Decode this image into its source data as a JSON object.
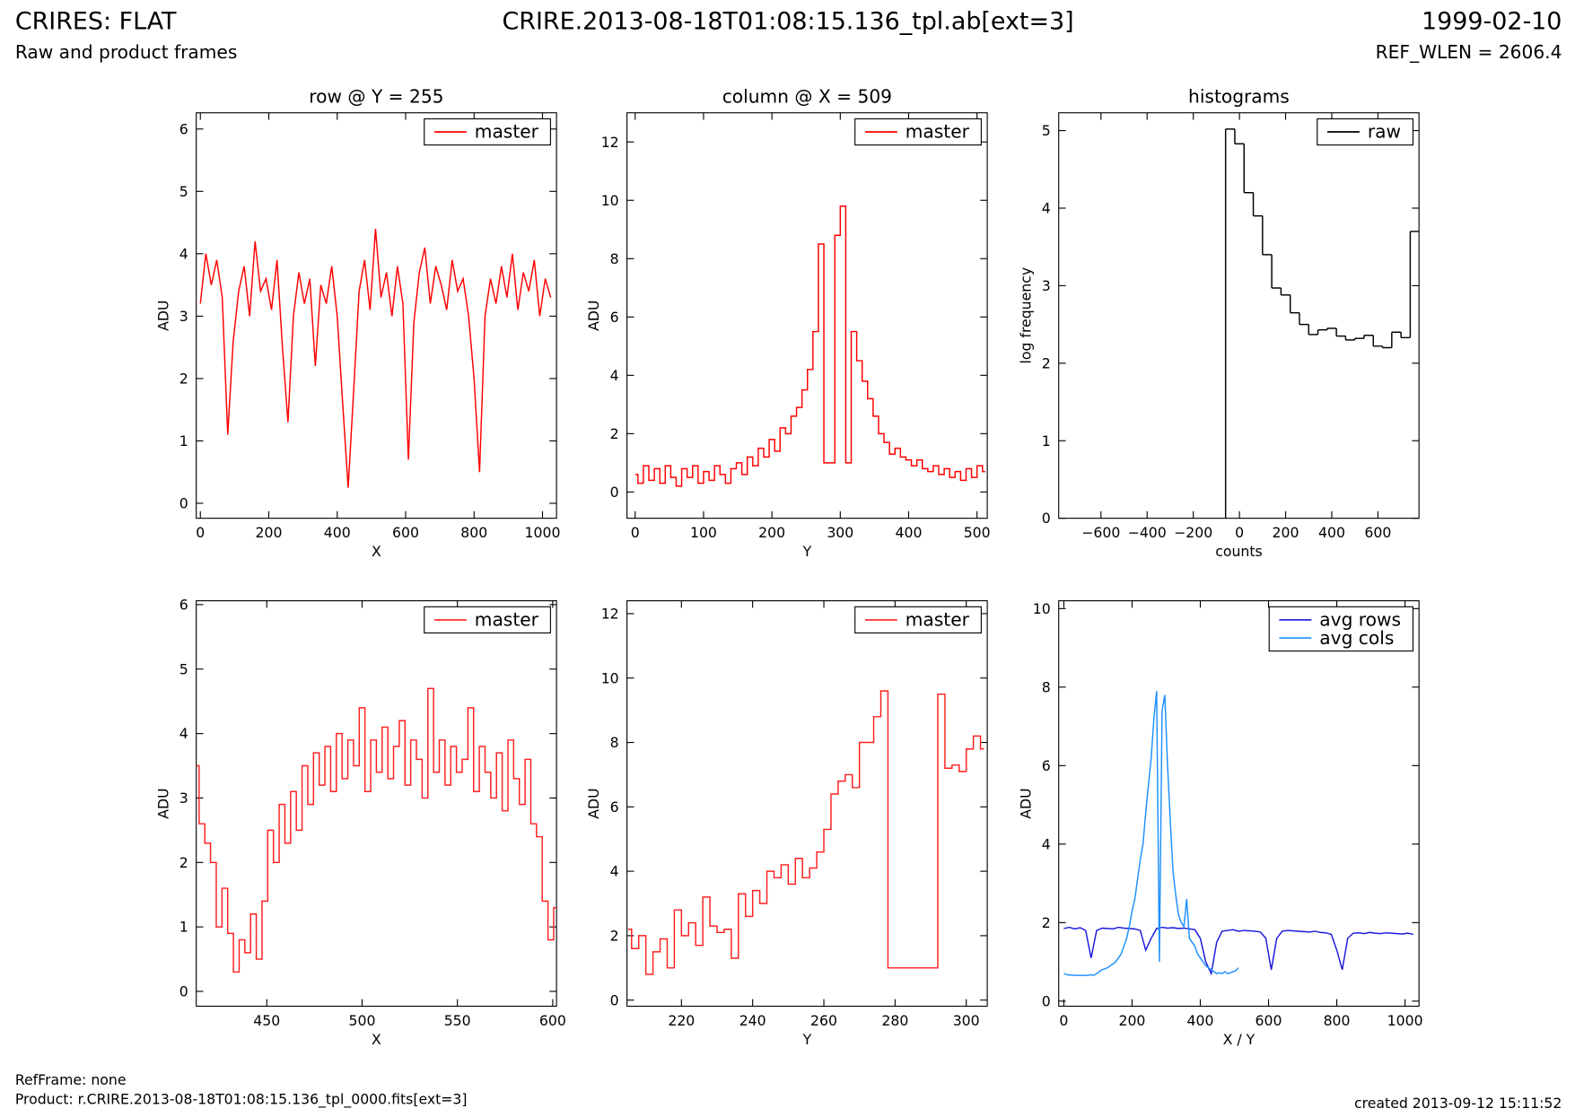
{
  "header": {
    "title": "CRIRES: FLAT",
    "file": "CRIRE.2013-08-18T01:08:15.136_tpl.ab[ext=3]",
    "date": "1999-02-10",
    "subtitle": "Raw and product frames",
    "ref_wlen": "REF_WLEN = 2606.4"
  },
  "footer": {
    "ref_frame": "RefFrame: none",
    "product": "Product: r.CRIRE.2013-08-18T01:08:15.136_tpl_0000.fits[ext=3]",
    "created": "created 2013-09-12 15:11:52"
  },
  "chart_data": [
    {
      "type": "line",
      "title": "row @ Y = 255",
      "x_label": "X",
      "y_label": "ADU",
      "legend": "upper right",
      "step": false,
      "xlim": [
        -12,
        1041
      ],
      "ylim": [
        -0.24,
        6.26
      ],
      "xticks": [
        0,
        200,
        400,
        600,
        800,
        1000
      ],
      "yticks": [
        0,
        1,
        2,
        3,
        4,
        5,
        6
      ],
      "series": [
        {
          "name": "master",
          "color": "#ff0000",
          "x": [
            0,
            16,
            32,
            48,
            64,
            80,
            96,
            112,
            128,
            144,
            160,
            176,
            192,
            208,
            224,
            240,
            256,
            272,
            288,
            304,
            320,
            336,
            352,
            368,
            384,
            400,
            416,
            432,
            448,
            464,
            480,
            496,
            512,
            528,
            544,
            560,
            576,
            592,
            608,
            624,
            640,
            656,
            672,
            688,
            704,
            720,
            736,
            752,
            768,
            784,
            800,
            816,
            832,
            848,
            864,
            880,
            896,
            912,
            928,
            944,
            960,
            976,
            992,
            1008,
            1024
          ],
          "values": [
            3.2,
            4.0,
            3.5,
            3.9,
            3.3,
            1.1,
            2.6,
            3.4,
            3.8,
            3.0,
            4.2,
            3.4,
            3.6,
            3.1,
            3.9,
            2.5,
            1.3,
            3.0,
            3.7,
            3.2,
            3.6,
            2.2,
            3.5,
            3.2,
            3.8,
            3.0,
            1.6,
            0.25,
            1.8,
            3.4,
            3.9,
            3.1,
            4.4,
            3.3,
            3.7,
            3.0,
            3.8,
            3.2,
            0.7,
            2.9,
            3.7,
            4.1,
            3.2,
            3.8,
            3.5,
            3.1,
            3.9,
            3.4,
            3.6,
            3.0,
            2.0,
            0.5,
            3.0,
            3.6,
            3.2,
            3.8,
            3.3,
            4.0,
            3.1,
            3.7,
            3.4,
            3.9,
            3.0,
            3.6,
            3.3
          ]
        }
      ]
    },
    {
      "type": "line",
      "title": "column @ X = 509",
      "x_label": "Y",
      "y_label": "ADU",
      "legend": "upper right",
      "step": true,
      "xlim": [
        -12,
        515
      ],
      "ylim": [
        -0.9,
        13
      ],
      "xticks": [
        0,
        100,
        200,
        300,
        400,
        500
      ],
      "yticks": [
        0,
        2,
        4,
        6,
        8,
        10,
        12
      ],
      "series": [
        {
          "name": "master",
          "color": "#ff0000",
          "x": [
            0,
            8,
            16,
            24,
            32,
            40,
            48,
            56,
            64,
            72,
            80,
            88,
            96,
            104,
            112,
            120,
            128,
            136,
            144,
            152,
            160,
            168,
            176,
            184,
            192,
            200,
            208,
            216,
            224,
            232,
            240,
            248,
            256,
            264,
            272,
            280,
            288,
            296,
            304,
            312,
            320,
            328,
            336,
            344,
            352,
            360,
            368,
            376,
            384,
            392,
            400,
            408,
            416,
            424,
            432,
            440,
            448,
            456,
            464,
            472,
            480,
            488,
            496,
            504,
            512
          ],
          "values": [
            0.6,
            0.3,
            0.9,
            0.4,
            0.8,
            0.3,
            0.9,
            0.5,
            0.2,
            0.8,
            0.5,
            0.9,
            0.3,
            0.7,
            0.4,
            0.9,
            0.6,
            0.3,
            0.8,
            1.0,
            0.6,
            1.2,
            0.9,
            1.5,
            1.2,
            1.8,
            1.4,
            2.2,
            2.0,
            2.6,
            2.9,
            3.5,
            4.2,
            5.5,
            8.5,
            1.0,
            1.0,
            8.8,
            9.8,
            1.0,
            5.5,
            4.5,
            3.8,
            3.2,
            2.6,
            2.0,
            1.7,
            1.3,
            1.5,
            1.2,
            1.1,
            0.9,
            1.1,
            0.8,
            0.7,
            0.9,
            0.6,
            0.8,
            0.5,
            0.7,
            0.4,
            0.8,
            0.5,
            0.9,
            0.7
          ]
        }
      ]
    },
    {
      "type": "histogram",
      "title": "histograms",
      "x_label": "counts",
      "y_label": "log frequency",
      "legend": "upper right",
      "xlim": [
        -783,
        778
      ],
      "ylim": [
        0,
        5.23
      ],
      "xticks": [
        {
          "value": -600,
          "label": "−600"
        },
        {
          "value": -400,
          "label": "−400"
        },
        {
          "value": -200,
          "label": "−200"
        },
        0,
        200,
        400,
        600
      ],
      "yticks": [
        0,
        1,
        2,
        3,
        4,
        5
      ],
      "bins": [
        -60,
        -20,
        20,
        60,
        100,
        140,
        180,
        220,
        260,
        300,
        340,
        380,
        420,
        460,
        500,
        540,
        580,
        620,
        660,
        700,
        740,
        780
      ],
      "series": [
        {
          "name": "raw",
          "color": "#000000",
          "values": [
            5.02,
            4.83,
            4.2,
            3.9,
            3.4,
            2.97,
            2.88,
            2.65,
            2.5,
            2.37,
            2.43,
            2.45,
            2.35,
            2.3,
            2.32,
            2.36,
            2.22,
            2.2,
            2.4,
            2.33,
            3.7
          ]
        }
      ]
    },
    {
      "type": "line",
      "x_label": "X",
      "y_label": "ADU",
      "legend": "upper right",
      "step": true,
      "xlim": [
        413,
        602
      ],
      "ylim": [
        -0.23,
        6.06
      ],
      "xticks": [
        450,
        500,
        550,
        600
      ],
      "yticks": [
        0,
        1,
        2,
        3,
        4,
        5,
        6
      ],
      "series": [
        {
          "name": "master",
          "color": "#ff2020",
          "x": [
            413,
            416,
            419,
            422,
            425,
            428,
            431,
            434,
            437,
            440,
            443,
            446,
            449,
            452,
            455,
            458,
            461,
            464,
            467,
            470,
            473,
            476,
            479,
            482,
            485,
            488,
            491,
            494,
            497,
            500,
            503,
            506,
            509,
            512,
            515,
            518,
            521,
            524,
            527,
            530,
            533,
            536,
            539,
            542,
            545,
            548,
            551,
            554,
            557,
            560,
            563,
            566,
            569,
            572,
            575,
            578,
            581,
            584,
            587,
            590,
            593,
            596,
            599,
            602
          ],
          "values": [
            3.5,
            2.6,
            2.3,
            2.0,
            1.0,
            1.6,
            0.9,
            0.3,
            0.8,
            0.6,
            1.2,
            0.5,
            1.4,
            2.5,
            2.0,
            2.9,
            2.3,
            3.1,
            2.5,
            3.5,
            2.9,
            3.7,
            3.2,
            3.8,
            3.1,
            4.0,
            3.3,
            3.9,
            3.5,
            4.4,
            3.1,
            3.9,
            3.4,
            4.1,
            3.3,
            3.8,
            4.2,
            3.2,
            3.9,
            3.6,
            3.0,
            4.7,
            3.4,
            3.9,
            3.2,
            3.8,
            3.4,
            3.6,
            4.4,
            3.1,
            3.8,
            3.4,
            3.0,
            3.7,
            2.8,
            3.9,
            3.3,
            2.9,
            3.6,
            2.6,
            2.4,
            1.4,
            0.8,
            1.3
          ]
        }
      ]
    },
    {
      "type": "line",
      "x_label": "Y",
      "y_label": "ADU",
      "legend": "upper right",
      "step": true,
      "xlim": [
        204.7,
        305.9
      ],
      "ylim": [
        -0.19,
        12.4
      ],
      "xticks": [
        220,
        240,
        260,
        280,
        300
      ],
      "yticks": [
        0,
        2,
        4,
        6,
        8,
        10,
        12
      ],
      "series": [
        {
          "name": "master",
          "color": "#ff2020",
          "x": [
            205,
            207,
            209,
            211,
            213,
            215,
            217,
            219,
            221,
            223,
            225,
            227,
            229,
            231,
            233,
            235,
            237,
            239,
            241,
            243,
            245,
            247,
            249,
            251,
            253,
            255,
            257,
            259,
            261,
            263,
            265,
            267,
            269,
            271,
            273,
            275,
            277,
            279,
            281,
            283,
            285,
            287,
            289,
            291,
            293,
            295,
            297,
            299,
            301,
            303,
            305
          ],
          "values": [
            2.2,
            1.6,
            2.0,
            0.8,
            1.5,
            1.9,
            1.0,
            2.8,
            2.0,
            2.4,
            1.7,
            3.2,
            2.3,
            2.1,
            2.2,
            1.3,
            3.3,
            2.6,
            3.4,
            3.0,
            4.0,
            3.8,
            4.2,
            3.6,
            4.4,
            3.8,
            4.1,
            4.6,
            5.3,
            6.4,
            6.8,
            7.0,
            6.6,
            8.0,
            8.0,
            8.8,
            9.6,
            1.0,
            1.0,
            1.0,
            1.0,
            1.0,
            1.0,
            1.0,
            9.5,
            7.2,
            7.3,
            7.1,
            7.8,
            8.2,
            7.8
          ]
        }
      ]
    },
    {
      "type": "line",
      "x_label": "X / Y",
      "y_label": "ADU",
      "legend": "upper right",
      "step": false,
      "xlim": [
        -15,
        1041
      ],
      "ylim": [
        -0.13,
        10.2
      ],
      "xticks": [
        0,
        200,
        400,
        600,
        800,
        1000
      ],
      "yticks": [
        0,
        2,
        4,
        6,
        8,
        10
      ],
      "series": [
        {
          "name": "avg rows",
          "color": "#1a1adc",
          "x": [
            0,
            16,
            32,
            48,
            64,
            80,
            96,
            112,
            128,
            144,
            160,
            176,
            192,
            208,
            224,
            240,
            256,
            272,
            288,
            304,
            320,
            336,
            352,
            368,
            384,
            400,
            416,
            432,
            448,
            464,
            480,
            496,
            512,
            528,
            544,
            560,
            576,
            592,
            608,
            624,
            640,
            656,
            672,
            688,
            704,
            720,
            736,
            752,
            768,
            784,
            800,
            816,
            832,
            848,
            864,
            880,
            896,
            912,
            928,
            944,
            960,
            976,
            992,
            1008,
            1024
          ],
          "values": [
            1.85,
            1.88,
            1.84,
            1.87,
            1.8,
            1.1,
            1.8,
            1.86,
            1.85,
            1.84,
            1.88,
            1.86,
            1.85,
            1.84,
            1.8,
            1.3,
            1.6,
            1.85,
            1.88,
            1.86,
            1.87,
            1.85,
            1.86,
            1.84,
            1.82,
            1.6,
            1.0,
            0.7,
            1.5,
            1.78,
            1.8,
            1.82,
            1.78,
            1.8,
            1.79,
            1.78,
            1.76,
            1.6,
            0.8,
            1.6,
            1.78,
            1.8,
            1.79,
            1.78,
            1.77,
            1.76,
            1.78,
            1.75,
            1.74,
            1.7,
            1.3,
            0.8,
            1.6,
            1.73,
            1.74,
            1.72,
            1.75,
            1.73,
            1.72,
            1.74,
            1.73,
            1.72,
            1.71,
            1.73,
            1.7
          ]
        },
        {
          "name": "avg cols",
          "color": "#1e90ff",
          "x": [
            0,
            8,
            16,
            24,
            32,
            40,
            48,
            56,
            64,
            72,
            80,
            88,
            96,
            104,
            112,
            120,
            128,
            136,
            144,
            152,
            160,
            168,
            176,
            184,
            192,
            200,
            208,
            216,
            224,
            232,
            240,
            248,
            256,
            264,
            272,
            280,
            288,
            296,
            304,
            312,
            320,
            328,
            336,
            344,
            352,
            360,
            368,
            376,
            384,
            392,
            400,
            408,
            416,
            424,
            432,
            440,
            448,
            456,
            464,
            472,
            480,
            488,
            496,
            504,
            512
          ],
          "values": [
            0.7,
            0.68,
            0.66,
            0.67,
            0.65,
            0.66,
            0.65,
            0.66,
            0.65,
            0.66,
            0.67,
            0.66,
            0.7,
            0.75,
            0.8,
            0.82,
            0.85,
            0.9,
            0.95,
            1.0,
            1.1,
            1.2,
            1.4,
            1.6,
            1.9,
            2.3,
            2.6,
            3.1,
            3.6,
            4.0,
            4.8,
            5.5,
            6.2,
            7.2,
            7.9,
            1.0,
            7.4,
            7.8,
            6.0,
            4.6,
            3.3,
            2.7,
            2.2,
            2.0,
            1.9,
            2.6,
            1.6,
            1.5,
            1.4,
            1.2,
            1.1,
            1.0,
            0.9,
            0.85,
            0.8,
            0.75,
            0.7,
            0.72,
            0.7,
            0.75,
            0.7,
            0.72,
            0.75,
            0.78,
            0.85
          ]
        }
      ]
    }
  ]
}
